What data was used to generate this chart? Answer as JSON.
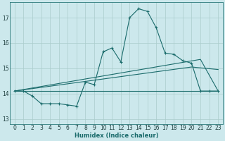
{
  "title": "",
  "xlabel": "Humidex (Indice chaleur)",
  "xlim": [
    -0.5,
    23.5
  ],
  "ylim": [
    12.8,
    17.6
  ],
  "yticks": [
    13,
    14,
    15,
    16,
    17
  ],
  "xticks": [
    0,
    1,
    2,
    3,
    4,
    5,
    6,
    7,
    8,
    9,
    10,
    11,
    12,
    13,
    14,
    15,
    16,
    17,
    18,
    19,
    20,
    21,
    22,
    23
  ],
  "bg_color": "#cce8ec",
  "grid_color": "#aacccc",
  "line_color": "#1a6b6b",
  "series": {
    "main_curve": {
      "x": [
        0,
        1,
        2,
        3,
        4,
        5,
        6,
        7,
        8,
        9,
        10,
        11,
        12,
        13,
        14,
        15,
        16,
        17,
        18,
        19,
        20,
        21,
        22,
        23
      ],
      "y": [
        14.1,
        14.1,
        13.9,
        13.6,
        13.6,
        13.6,
        13.55,
        13.5,
        14.45,
        14.35,
        15.65,
        15.8,
        15.25,
        17.0,
        17.35,
        17.25,
        16.6,
        15.6,
        15.55,
        15.3,
        15.2,
        14.1,
        14.1,
        14.1
      ]
    },
    "upper_line": {
      "x": [
        0,
        21,
        23
      ],
      "y": [
        14.1,
        15.35,
        14.1
      ]
    },
    "lower_line": {
      "x": [
        0,
        23
      ],
      "y": [
        14.1,
        14.1
      ]
    },
    "mid_line": {
      "x": [
        0,
        20,
        23
      ],
      "y": [
        14.1,
        15.05,
        14.95
      ]
    }
  }
}
